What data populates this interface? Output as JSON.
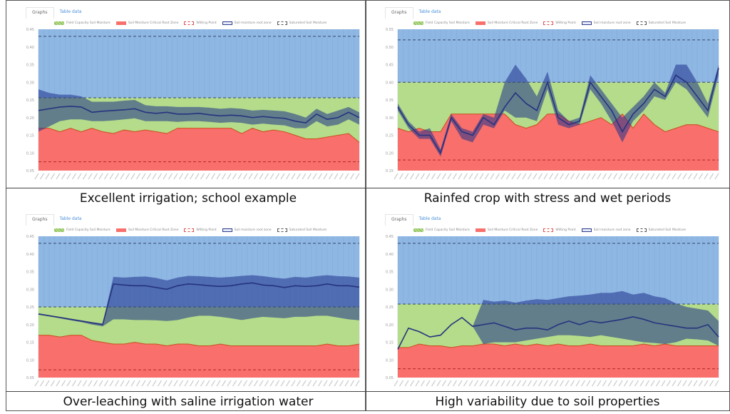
{
  "tabs": {
    "graphs": "Graphs",
    "table_data": "Table data"
  },
  "legend": [
    {
      "label": "Field Capacity Soil Moisture",
      "color": "#b5dc8a",
      "style": "hatched"
    },
    {
      "label": "Soil Moisture Critical Root Zone",
      "color": "#f86f6b",
      "style": "solid"
    },
    {
      "label": "Wilting Point",
      "color": "#e05050",
      "style": "dashed"
    },
    {
      "label": "Soil moisture root zone",
      "color": "#2a3a8c",
      "style": "solid-outline"
    },
    {
      "label": "Saturated Soil Moisture",
      "color": "#555555",
      "style": "dashed"
    }
  ],
  "colors": {
    "saturated_zone": "#8fb7e3",
    "field_capacity_zone": "#b5dc8a",
    "critical_zone": "#f86f6b",
    "band": "#1e328c",
    "moisture_line": "#26337e",
    "critical_line": "#c8501e"
  },
  "chart_data": [
    {
      "type": "area",
      "caption": "Excellent irrigation; school example",
      "yticks": [
        "0.45",
        "0.40",
        "0.35",
        "0.30",
        "0.25",
        "0.20",
        "0.15",
        "0.10",
        "0.05"
      ],
      "ylim": [
        0.05,
        0.45
      ],
      "saturated": 0.43,
      "field_capacity": 0.256,
      "wilting_point": 0.075,
      "moisture": [
        0.22,
        0.225,
        0.23,
        0.232,
        0.23,
        0.215,
        0.218,
        0.22,
        0.222,
        0.225,
        0.215,
        0.212,
        0.215,
        0.21,
        0.21,
        0.212,
        0.208,
        0.205,
        0.207,
        0.205,
        0.2,
        0.203,
        0.2,
        0.198,
        0.19,
        0.185,
        0.21,
        0.195,
        0.2,
        0.215,
        0.2
      ],
      "band_upper": [
        0.28,
        0.27,
        0.265,
        0.265,
        0.26,
        0.245,
        0.245,
        0.245,
        0.248,
        0.25,
        0.235,
        0.232,
        0.232,
        0.23,
        0.23,
        0.23,
        0.228,
        0.225,
        0.227,
        0.225,
        0.22,
        0.222,
        0.22,
        0.218,
        0.21,
        0.2,
        0.225,
        0.21,
        0.22,
        0.23,
        0.215
      ],
      "band_lower": [
        0.16,
        0.175,
        0.19,
        0.195,
        0.195,
        0.19,
        0.19,
        0.192,
        0.195,
        0.198,
        0.19,
        0.19,
        0.19,
        0.188,
        0.19,
        0.19,
        0.188,
        0.185,
        0.187,
        0.185,
        0.18,
        0.183,
        0.18,
        0.178,
        0.17,
        0.17,
        0.19,
        0.175,
        0.18,
        0.195,
        0.18
      ],
      "critical": [
        0.17,
        0.17,
        0.16,
        0.17,
        0.16,
        0.17,
        0.16,
        0.155,
        0.165,
        0.16,
        0.165,
        0.16,
        0.155,
        0.17,
        0.17,
        0.17,
        0.17,
        0.17,
        0.17,
        0.155,
        0.17,
        0.16,
        0.165,
        0.16,
        0.15,
        0.14,
        0.14,
        0.145,
        0.15,
        0.155,
        0.13
      ]
    },
    {
      "type": "area",
      "caption": "Rainfed crop with stress and wet periods",
      "yticks": [
        "0.55",
        "0.50",
        "0.45",
        "0.40",
        "0.35",
        "0.30",
        "0.25",
        "0.20",
        "0.15"
      ],
      "ylim": [
        0.15,
        0.55
      ],
      "saturated": 0.52,
      "field_capacity": 0.4,
      "wilting_point": 0.18,
      "moisture": [
        0.33,
        0.28,
        0.25,
        0.25,
        0.2,
        0.3,
        0.26,
        0.25,
        0.3,
        0.28,
        0.33,
        0.37,
        0.34,
        0.32,
        0.4,
        0.3,
        0.28,
        0.29,
        0.4,
        0.36,
        0.32,
        0.26,
        0.31,
        0.34,
        0.38,
        0.36,
        0.42,
        0.4,
        0.36,
        0.32,
        0.44
      ],
      "band_upper": [
        0.34,
        0.29,
        0.26,
        0.27,
        0.21,
        0.31,
        0.27,
        0.26,
        0.31,
        0.3,
        0.4,
        0.45,
        0.41,
        0.36,
        0.43,
        0.32,
        0.29,
        0.3,
        0.42,
        0.38,
        0.34,
        0.3,
        0.33,
        0.36,
        0.4,
        0.37,
        0.45,
        0.45,
        0.4,
        0.34,
        0.45
      ],
      "band_lower": [
        0.32,
        0.27,
        0.24,
        0.24,
        0.19,
        0.29,
        0.24,
        0.23,
        0.28,
        0.27,
        0.32,
        0.3,
        0.3,
        0.29,
        0.38,
        0.28,
        0.27,
        0.28,
        0.38,
        0.34,
        0.29,
        0.23,
        0.29,
        0.32,
        0.36,
        0.35,
        0.4,
        0.38,
        0.34,
        0.3,
        0.42
      ],
      "critical": [
        0.27,
        0.26,
        0.27,
        0.26,
        0.26,
        0.31,
        0.31,
        0.31,
        0.31,
        0.31,
        0.31,
        0.28,
        0.27,
        0.28,
        0.31,
        0.31,
        0.29,
        0.28,
        0.29,
        0.3,
        0.28,
        0.31,
        0.27,
        0.31,
        0.28,
        0.26,
        0.27,
        0.28,
        0.28,
        0.27,
        0.26
      ]
    },
    {
      "type": "area",
      "caption": "Over-leaching with saline irrigation water",
      "yticks": [
        "0.45",
        "0.40",
        "0.35",
        "0.30",
        "0.25",
        "0.20",
        "0.15",
        "0.10",
        "0.05"
      ],
      "ylim": [
        0.05,
        0.45
      ],
      "saturated": 0.43,
      "field_capacity": 0.25,
      "wilting_point": 0.072,
      "moisture": [
        0.23,
        0.225,
        0.22,
        0.215,
        0.21,
        0.205,
        0.2,
        0.315,
        0.312,
        0.31,
        0.31,
        0.305,
        0.3,
        0.31,
        0.315,
        0.313,
        0.31,
        0.308,
        0.31,
        0.315,
        0.318,
        0.312,
        0.31,
        0.305,
        0.31,
        0.308,
        0.31,
        0.315,
        0.31,
        0.31,
        0.306
      ],
      "band_upper": [
        0.232,
        0.227,
        0.222,
        0.217,
        0.212,
        0.207,
        0.203,
        0.335,
        0.333,
        0.335,
        0.336,
        0.332,
        0.325,
        0.333,
        0.338,
        0.337,
        0.335,
        0.333,
        0.335,
        0.338,
        0.34,
        0.337,
        0.333,
        0.33,
        0.335,
        0.333,
        0.337,
        0.34,
        0.337,
        0.336,
        0.333
      ],
      "band_lower": [
        0.228,
        0.223,
        0.218,
        0.212,
        0.207,
        0.2,
        0.195,
        0.215,
        0.215,
        0.213,
        0.213,
        0.212,
        0.21,
        0.213,
        0.22,
        0.225,
        0.225,
        0.222,
        0.218,
        0.213,
        0.218,
        0.222,
        0.22,
        0.218,
        0.222,
        0.222,
        0.225,
        0.225,
        0.22,
        0.215,
        0.212
      ],
      "critical": [
        0.17,
        0.17,
        0.165,
        0.17,
        0.17,
        0.155,
        0.15,
        0.145,
        0.145,
        0.15,
        0.145,
        0.145,
        0.14,
        0.145,
        0.145,
        0.14,
        0.14,
        0.145,
        0.14,
        0.14,
        0.14,
        0.14,
        0.14,
        0.14,
        0.14,
        0.14,
        0.14,
        0.145,
        0.14,
        0.14,
        0.145
      ]
    },
    {
      "type": "area",
      "caption": "High variability due to soil properties",
      "yticks": [
        "0.45",
        "0.40",
        "0.35",
        "0.30",
        "0.25",
        "0.20",
        "0.15",
        "0.10",
        "0.05"
      ],
      "ylim": [
        0.05,
        0.45
      ],
      "saturated": 0.43,
      "field_capacity": 0.258,
      "wilting_point": 0.075,
      "moisture": [
        0.13,
        0.19,
        0.18,
        0.165,
        0.17,
        0.2,
        0.22,
        0.195,
        0.2,
        0.205,
        0.195,
        0.185,
        0.19,
        0.19,
        0.185,
        0.2,
        0.21,
        0.2,
        0.21,
        0.205,
        0.21,
        0.215,
        0.222,
        0.215,
        0.205,
        0.2,
        0.195,
        0.19,
        0.19,
        0.2,
        0.165
      ],
      "band_upper": [
        0.13,
        0.19,
        0.18,
        0.165,
        0.17,
        0.2,
        0.22,
        0.195,
        0.27,
        0.265,
        0.268,
        0.262,
        0.268,
        0.272,
        0.27,
        0.275,
        0.28,
        0.282,
        0.285,
        0.29,
        0.29,
        0.295,
        0.285,
        0.29,
        0.28,
        0.275,
        0.26,
        0.25,
        0.245,
        0.24,
        0.21
      ],
      "band_lower": [
        0.13,
        0.19,
        0.18,
        0.165,
        0.17,
        0.2,
        0.22,
        0.195,
        0.145,
        0.15,
        0.15,
        0.15,
        0.155,
        0.16,
        0.165,
        0.17,
        0.17,
        0.168,
        0.165,
        0.17,
        0.165,
        0.16,
        0.155,
        0.15,
        0.148,
        0.145,
        0.15,
        0.16,
        0.158,
        0.155,
        0.14
      ],
      "critical": [
        0.135,
        0.135,
        0.145,
        0.14,
        0.14,
        0.135,
        0.14,
        0.14,
        0.145,
        0.145,
        0.14,
        0.145,
        0.14,
        0.145,
        0.14,
        0.145,
        0.14,
        0.14,
        0.145,
        0.14,
        0.14,
        0.14,
        0.14,
        0.145,
        0.14,
        0.145,
        0.14,
        0.14,
        0.14,
        0.14,
        0.14
      ]
    }
  ]
}
